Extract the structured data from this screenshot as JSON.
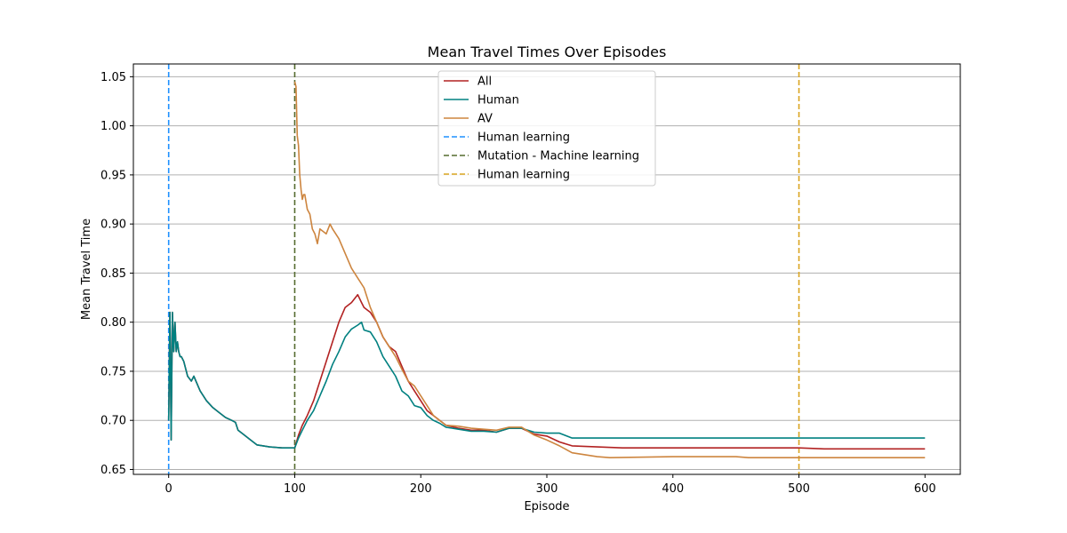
{
  "chart_data": {
    "type": "line",
    "title": "Mean Travel Times Over Episodes",
    "xlabel": "Episode",
    "ylabel": "Mean Travel Time",
    "xlim": [
      -28,
      628
    ],
    "ylim": [
      0.645,
      1.063
    ],
    "xticks": [
      0,
      100,
      200,
      300,
      400,
      500,
      600
    ],
    "yticks": [
      0.65,
      0.7,
      0.75,
      0.8,
      0.85,
      0.9,
      0.95,
      1.0,
      1.05
    ],
    "ytick_labels": [
      "0.65",
      "0.70",
      "0.75",
      "0.80",
      "0.85",
      "0.90",
      "0.95",
      "1.00",
      "1.05"
    ],
    "grid": "horizontal",
    "legend_position": "upper-center",
    "series": [
      {
        "name": "All",
        "color": "#b22222",
        "x": [
          0,
          1,
          2,
          3,
          4,
          5,
          6,
          7,
          8,
          9,
          10,
          12,
          15,
          18,
          20,
          25,
          30,
          35,
          40,
          45,
          50,
          53,
          55,
          60,
          65,
          70,
          80,
          90,
          99,
          100,
          103,
          106,
          110,
          115,
          120,
          125,
          130,
          135,
          140,
          145,
          150,
          153,
          155,
          160,
          165,
          170,
          175,
          180,
          185,
          190,
          195,
          200,
          205,
          210,
          215,
          220,
          230,
          240,
          250,
          260,
          270,
          280,
          290,
          300,
          310,
          320,
          340,
          360,
          400,
          450,
          500,
          520,
          600
        ],
        "y": [
          0.7,
          0.81,
          0.68,
          0.81,
          0.77,
          0.8,
          0.77,
          0.78,
          0.77,
          0.765,
          0.765,
          0.76,
          0.745,
          0.74,
          0.745,
          0.73,
          0.72,
          0.713,
          0.708,
          0.703,
          0.7,
          0.698,
          0.69,
          0.685,
          0.68,
          0.675,
          0.673,
          0.672,
          0.672,
          0.672,
          0.685,
          0.695,
          0.705,
          0.72,
          0.74,
          0.76,
          0.78,
          0.8,
          0.815,
          0.82,
          0.828,
          0.82,
          0.815,
          0.81,
          0.8,
          0.785,
          0.775,
          0.77,
          0.755,
          0.74,
          0.73,
          0.72,
          0.71,
          0.705,
          0.7,
          0.695,
          0.692,
          0.69,
          0.69,
          0.688,
          0.692,
          0.692,
          0.686,
          0.684,
          0.678,
          0.674,
          0.673,
          0.672,
          0.672,
          0.672,
          0.672,
          0.671,
          0.671
        ]
      },
      {
        "name": "Human",
        "color": "#008080",
        "x": [
          0,
          1,
          2,
          3,
          4,
          5,
          6,
          7,
          8,
          9,
          10,
          12,
          15,
          18,
          20,
          25,
          30,
          35,
          40,
          45,
          50,
          53,
          55,
          60,
          65,
          70,
          80,
          90,
          99,
          100,
          103,
          106,
          110,
          115,
          120,
          125,
          130,
          135,
          140,
          145,
          150,
          153,
          155,
          160,
          165,
          170,
          175,
          180,
          185,
          190,
          195,
          200,
          205,
          210,
          215,
          220,
          230,
          240,
          250,
          260,
          270,
          280,
          290,
          300,
          310,
          320,
          340,
          360,
          400,
          450,
          500,
          520,
          600
        ],
        "y": [
          0.7,
          0.81,
          0.68,
          0.81,
          0.77,
          0.8,
          0.77,
          0.78,
          0.77,
          0.765,
          0.765,
          0.76,
          0.745,
          0.74,
          0.745,
          0.73,
          0.72,
          0.713,
          0.708,
          0.703,
          0.7,
          0.698,
          0.69,
          0.685,
          0.68,
          0.675,
          0.673,
          0.672,
          0.672,
          0.672,
          0.682,
          0.69,
          0.7,
          0.71,
          0.725,
          0.74,
          0.757,
          0.77,
          0.785,
          0.793,
          0.797,
          0.8,
          0.792,
          0.79,
          0.78,
          0.765,
          0.755,
          0.745,
          0.73,
          0.725,
          0.715,
          0.713,
          0.705,
          0.7,
          0.697,
          0.693,
          0.691,
          0.689,
          0.689,
          0.688,
          0.692,
          0.692,
          0.688,
          0.687,
          0.687,
          0.682,
          0.682,
          0.682,
          0.682,
          0.682,
          0.682,
          0.682,
          0.682
        ]
      },
      {
        "name": "AV",
        "color": "#cd853f",
        "x": [
          100,
          101,
          102,
          103,
          104,
          105,
          106,
          107,
          108,
          110,
          112,
          114,
          116,
          118,
          120,
          125,
          128,
          130,
          135,
          140,
          145,
          150,
          155,
          160,
          165,
          170,
          175,
          180,
          185,
          190,
          195,
          200,
          205,
          210,
          215,
          220,
          230,
          240,
          250,
          260,
          270,
          280,
          290,
          300,
          310,
          320,
          340,
          350,
          400,
          450,
          460,
          500,
          520,
          600
        ],
        "y": [
          1.045,
          1.04,
          0.99,
          0.98,
          0.95,
          0.935,
          0.925,
          0.93,
          0.93,
          0.915,
          0.91,
          0.895,
          0.89,
          0.88,
          0.895,
          0.89,
          0.9,
          0.895,
          0.885,
          0.87,
          0.855,
          0.845,
          0.835,
          0.815,
          0.8,
          0.785,
          0.775,
          0.765,
          0.752,
          0.74,
          0.735,
          0.725,
          0.715,
          0.705,
          0.7,
          0.695,
          0.694,
          0.692,
          0.691,
          0.69,
          0.693,
          0.693,
          0.685,
          0.68,
          0.674,
          0.667,
          0.663,
          0.662,
          0.663,
          0.663,
          0.662,
          0.662,
          0.662,
          0.662
        ]
      }
    ],
    "vlines": [
      {
        "name": "Human learning",
        "x": 0,
        "color": "#1e90ff"
      },
      {
        "name": "Mutation - Machine learning",
        "x": 100,
        "color": "#556b2f"
      },
      {
        "name": "Human learning",
        "x": 500,
        "color": "#daa520"
      }
    ]
  }
}
